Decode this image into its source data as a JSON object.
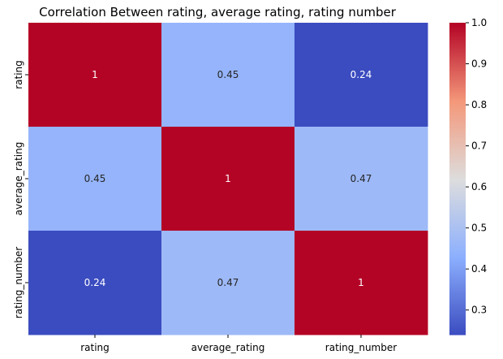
{
  "chart_data": {
    "type": "heatmap",
    "title": "Correlation Between rating, average rating, rating number",
    "x_labels": [
      "rating",
      "average_rating",
      "rating_number"
    ],
    "y_labels": [
      "rating",
      "average_rating",
      "rating_number"
    ],
    "matrix": [
      [
        1,
        0.45,
        0.24
      ],
      [
        0.45,
        1,
        0.47
      ],
      [
        0.24,
        0.47,
        1
      ]
    ],
    "annotations": [
      [
        "1",
        "0.45",
        "0.24"
      ],
      [
        "0.45",
        "1",
        "0.47"
      ],
      [
        "0.24",
        "0.47",
        "1"
      ]
    ],
    "colormap": "coolwarm",
    "vmin": 0.24,
    "vmax": 1.0,
    "colorbar_ticks": [
      0.3,
      0.4,
      0.5,
      0.6,
      0.7,
      0.8,
      0.9,
      1.0
    ],
    "colorbar_tick_labels": [
      "0.3",
      "0.4",
      "0.5",
      "0.6",
      "0.7",
      "0.8",
      "0.9",
      "1.0"
    ]
  }
}
